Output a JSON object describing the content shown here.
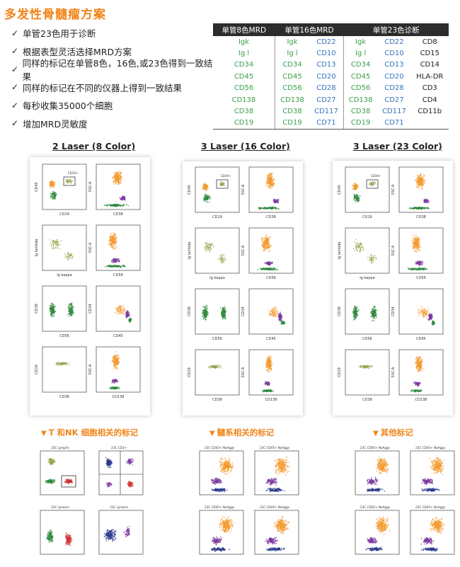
{
  "title": "多发性骨髓瘤方案",
  "bullets": [
    "单管23色用于诊断",
    "根据表型灵活选择MRD方案",
    "同样的标记在单管8色，16色,或23色得到一致结果",
    "同样的标记在不同的仪器上得到一致结果",
    "每秒收集35000个细胞",
    "增加MRD灵敏度"
  ],
  "check_icon": "✓",
  "table": {
    "headers": [
      "单管8色MRD",
      "单管16色MRD",
      "单管23色诊断"
    ],
    "rows": [
      [
        "Igk",
        "Igk",
        "CD22",
        "Igk",
        "CD22",
        "CD8"
      ],
      [
        "Ig l",
        "Ig l",
        "CD10",
        "Ig l",
        "CD10",
        "CD15"
      ],
      [
        "CD34",
        "CD34",
        "CD13",
        "CD34",
        "CD13",
        "CD14"
      ],
      [
        "CD45",
        "CD45",
        "CD20",
        "CD45",
        "CD20",
        "HLA-DR"
      ],
      [
        "CD56",
        "CD56",
        "CD28",
        "CD56",
        "CD28",
        "CD3"
      ],
      [
        "CD138",
        "CD138",
        "CD27",
        "CD138",
        "CD27",
        "CD4"
      ],
      [
        "CD38",
        "CD38",
        "CD117",
        "CD38",
        "CD117",
        "CD11b"
      ],
      [
        "CD19",
        "CD19",
        "CD71",
        "CD19",
        "CD71",
        ""
      ]
    ],
    "colors": {
      "green": "#3aa148",
      "blue": "#3573c0",
      "black": "#222222"
    }
  },
  "lasers": [
    "2 Laser (8 Color)",
    "3 Laser (16 Color)",
    "3 Laser (23 Color)"
  ],
  "plot_labels": {
    "r1": [
      "CD45",
      "CD19",
      "SSC-A",
      "CD38",
      "CD19+"
    ],
    "r2": [
      "Ig lambda",
      "Ig kappa",
      "SSC-A",
      "CD56"
    ],
    "r3": [
      "CD38",
      "CD56",
      "CD34",
      "CD45"
    ],
    "r4": [
      "CD19",
      "CD38",
      "SSC-A",
      "CD138"
    ]
  },
  "sections": [
    "T 和NK 细胞相关的标记",
    "髓系相关的标记",
    "其他标记"
  ],
  "section_icon": "▼",
  "small_plot_titles": {
    "tnk": [
      "23C Lymphs",
      "23C CD3+",
      "23C Lymphs",
      "23C Lymphs"
    ],
    "myeloid": [
      "23C CD45+ NoAggs",
      "23C CD45+ NoAggs",
      "23C CD45+ NoAggs",
      "23C CD45+ NoAggs"
    ],
    "other": [
      "23C CD45+ NoAggs",
      "23C CD45+ NoAggs",
      "23C CD45+ NoAggs",
      "23C CD45+ NoAggs"
    ]
  },
  "palette": {
    "accent": "#f0851a",
    "orange": "#f39a2e",
    "green": "#2f8a3e",
    "purple": "#7b3a9e",
    "red": "#d02f2f",
    "navy": "#2a3a8c",
    "olive": "#9aa04a"
  }
}
